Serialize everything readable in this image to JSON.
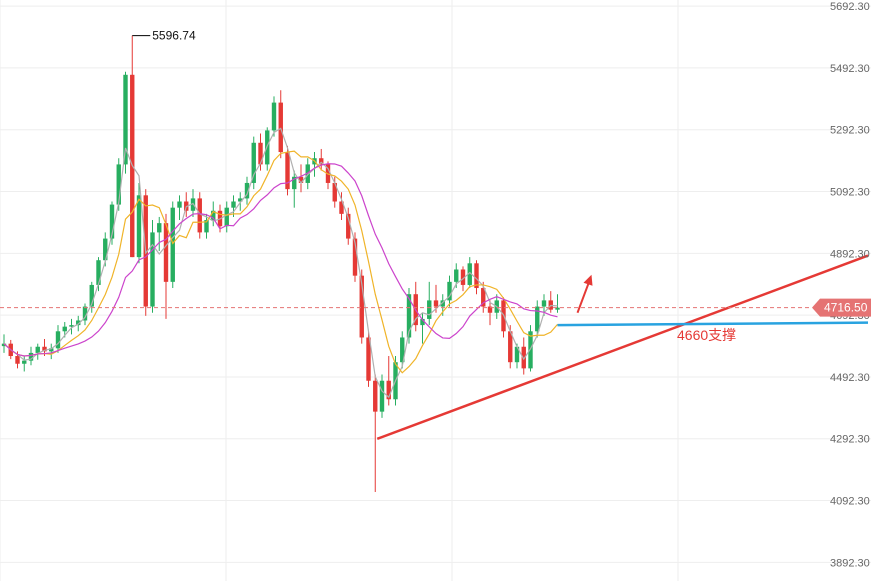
{
  "chart_data": {
    "type": "candlestick",
    "y_axis": {
      "ticks": [
        "5692.30",
        "5492.30",
        "5292.30",
        "5092.30",
        "4892.30",
        "4692.30",
        "4492.30",
        "4292.30",
        "4092.30",
        "3892.30"
      ],
      "tick_values": [
        5692.3,
        5492.3,
        5292.3,
        5092.3,
        4892.3,
        4692.3,
        4492.3,
        4292.3,
        4092.3,
        3892.3
      ],
      "range": [
        3832,
        5712
      ]
    },
    "grid": true,
    "current_price": {
      "label": "4716.50",
      "value": 4716.5
    },
    "high_annotation": {
      "label": "5596.74",
      "value": 5596.74
    },
    "support": {
      "label": "4660支撑",
      "value": 4660
    },
    "colors": {
      "up": "#27ae60",
      "down": "#e53935",
      "ma_short": "#b0b0b0",
      "ma_mid": "#f0b429",
      "ma_long": "#cc44cc",
      "trendline": "#e53935",
      "support_line": "#29a3e0",
      "price_tag": "#e57373",
      "grid": "#eeeeee"
    },
    "candles": [
      [
        4592,
        4630,
        4570,
        4600
      ],
      [
        4600,
        4612,
        4550,
        4560
      ],
      [
        4560,
        4575,
        4520,
        4535
      ],
      [
        4535,
        4560,
        4510,
        4545
      ],
      [
        4545,
        4590,
        4530,
        4570
      ],
      [
        4570,
        4600,
        4548,
        4590
      ],
      [
        4590,
        4615,
        4560,
        4575
      ],
      [
        4575,
        4600,
        4550,
        4585
      ],
      [
        4585,
        4660,
        4570,
        4640
      ],
      [
        4640,
        4670,
        4620,
        4655
      ],
      [
        4655,
        4680,
        4630,
        4660
      ],
      [
        4660,
        4690,
        4640,
        4675
      ],
      [
        4675,
        4730,
        4660,
        4720
      ],
      [
        4720,
        4800,
        4700,
        4790
      ],
      [
        4790,
        4880,
        4770,
        4870
      ],
      [
        4870,
        4960,
        4850,
        4940
      ],
      [
        4940,
        5060,
        4920,
        5050
      ],
      [
        5050,
        5200,
        5030,
        5180
      ],
      [
        5180,
        5480,
        5150,
        5470
      ],
      [
        5470,
        5596.74,
        4880,
        4880
      ],
      [
        4880,
        5120,
        4860,
        5080
      ],
      [
        5080,
        5100,
        4690,
        4720
      ],
      [
        4720,
        5000,
        4700,
        4960
      ],
      [
        4960,
        5010,
        4900,
        4990
      ],
      [
        4990,
        5020,
        4680,
        4800
      ],
      [
        4800,
        5060,
        4780,
        5040
      ],
      [
        5040,
        5080,
        5000,
        5060
      ],
      [
        5060,
        5090,
        5010,
        5030
      ],
      [
        5030,
        5100,
        5010,
        5070
      ],
      [
        5070,
        5090,
        4940,
        4960
      ],
      [
        4960,
        5020,
        4940,
        5000
      ],
      [
        5000,
        5060,
        4980,
        5030
      ],
      [
        5030,
        5050,
        4960,
        4980
      ],
      [
        4980,
        5060,
        4960,
        5040
      ],
      [
        5040,
        5080,
        5010,
        5060
      ],
      [
        5060,
        5090,
        5030,
        5070
      ],
      [
        5070,
        5140,
        5050,
        5120
      ],
      [
        5120,
        5270,
        5100,
        5250
      ],
      [
        5250,
        5280,
        5160,
        5180
      ],
      [
        5180,
        5300,
        5160,
        5290
      ],
      [
        5290,
        5400,
        5270,
        5380
      ],
      [
        5380,
        5420,
        5200,
        5220
      ],
      [
        5220,
        5240,
        5080,
        5100
      ],
      [
        5100,
        5160,
        5040,
        5140
      ],
      [
        5140,
        5180,
        5090,
        5120
      ],
      [
        5120,
        5200,
        5100,
        5180
      ],
      [
        5180,
        5220,
        5140,
        5200
      ],
      [
        5200,
        5230,
        5160,
        5180
      ],
      [
        5180,
        5190,
        5100,
        5120
      ],
      [
        5120,
        5140,
        5040,
        5060
      ],
      [
        5060,
        5090,
        5000,
        5020
      ],
      [
        5020,
        5040,
        4920,
        4940
      ],
      [
        4940,
        4960,
        4800,
        4820
      ],
      [
        4820,
        4840,
        4600,
        4620
      ],
      [
        4620,
        4640,
        4460,
        4480
      ],
      [
        4480,
        4500,
        4120,
        4380
      ],
      [
        4380,
        4500,
        4360,
        4480
      ],
      [
        4480,
        4560,
        4400,
        4420
      ],
      [
        4420,
        4560,
        4400,
        4540
      ],
      [
        4540,
        4640,
        4520,
        4620
      ],
      [
        4620,
        4780,
        4600,
        4760
      ],
      [
        4760,
        4800,
        4640,
        4660
      ],
      [
        4660,
        4700,
        4600,
        4680
      ],
      [
        4680,
        4800,
        4660,
        4740
      ],
      [
        4740,
        4790,
        4700,
        4720
      ],
      [
        4720,
        4760,
        4690,
        4740
      ],
      [
        4740,
        4820,
        4720,
        4800
      ],
      [
        4800,
        4860,
        4780,
        4840
      ],
      [
        4840,
        4850,
        4770,
        4790
      ],
      [
        4790,
        4880,
        4780,
        4860
      ],
      [
        4860,
        4870,
        4760,
        4780
      ],
      [
        4780,
        4800,
        4700,
        4720
      ],
      [
        4720,
        4740,
        4660,
        4700
      ],
      [
        4700,
        4760,
        4680,
        4740
      ],
      [
        4740,
        4750,
        4620,
        4640
      ],
      [
        4640,
        4660,
        4520,
        4540
      ],
      [
        4540,
        4600,
        4520,
        4590
      ],
      [
        4590,
        4620,
        4500,
        4520
      ],
      [
        4520,
        4660,
        4510,
        4640
      ],
      [
        4640,
        4740,
        4620,
        4720
      ],
      [
        4720,
        4760,
        4690,
        4740
      ],
      [
        4740,
        4770,
        4700,
        4710
      ],
      [
        4710,
        4760,
        4700,
        4716.5
      ]
    ]
  }
}
